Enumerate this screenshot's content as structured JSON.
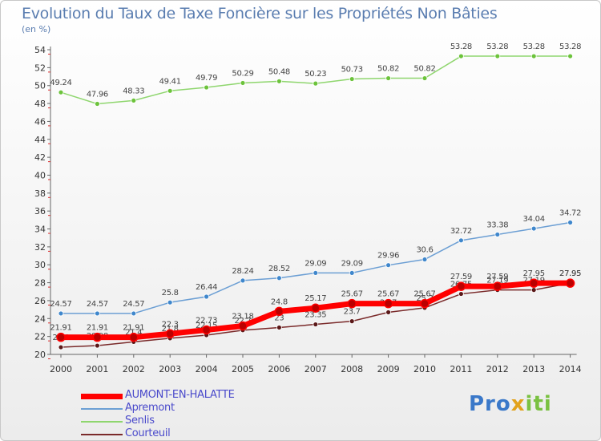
{
  "title": "Evolution du Taux de Taxe Foncière sur les Propriétés Non Bâties",
  "subtitle": "(en %)",
  "logo": {
    "text": "Proxiti"
  },
  "chart_data": {
    "type": "line",
    "title": "Evolution du Taux de Taxe Foncière sur les Propriétés Non Bâties",
    "ylabel": "(en %)",
    "xlabel": "",
    "ylim": [
      20,
      54
    ],
    "yticks": [
      20,
      22,
      24,
      26,
      28,
      30,
      32,
      34,
      36,
      38,
      40,
      42,
      44,
      46,
      48,
      50,
      52,
      54
    ],
    "grid": false,
    "legend_position": "bottom-left",
    "categories": [
      "2000",
      "2001",
      "2002",
      "2003",
      "2004",
      "2005",
      "2006",
      "2007",
      "2008",
      "2009",
      "2010",
      "2011",
      "2012",
      "2013",
      "2014"
    ],
    "series": [
      {
        "name": "AUMONT-EN-HALATTE",
        "color": "#ff0000",
        "width": 7,
        "dot": "#bb0000",
        "values": [
          21.91,
          21.91,
          21.91,
          22.3,
          22.73,
          23.18,
          24.8,
          25.17,
          25.67,
          25.67,
          25.67,
          27.59,
          27.59,
          27.95,
          27.95
        ],
        "labels": [
          "21.91",
          "21.91",
          "21.91",
          "22.3",
          "22.73",
          "23.18",
          "24.8",
          "25.17",
          "25.67",
          "25.67",
          "25.67",
          "27.59",
          "27.59",
          "27.95",
          "27.95"
        ]
      },
      {
        "name": "Apremont",
        "color": "#6c9fd4",
        "width": 1.5,
        "dot": "#3f87cc",
        "values": [
          24.57,
          24.57,
          24.57,
          25.8,
          26.44,
          28.24,
          28.52,
          29.09,
          29.09,
          29.96,
          30.6,
          32.72,
          33.38,
          34.04,
          34.72
        ],
        "labels": [
          "24.57",
          "24.57",
          "24.57",
          "25.8",
          "26.44",
          "28.24",
          "28.52",
          "29.09",
          "29.09",
          "29.96",
          "30.6",
          "32.72",
          "33.38",
          "34.04",
          "34.72"
        ]
      },
      {
        "name": "Senlis",
        "color": "#8fd66e",
        "width": 1.5,
        "dot": "#6cc33b",
        "values": [
          49.24,
          47.96,
          48.33,
          49.41,
          49.79,
          50.29,
          50.48,
          50.23,
          50.73,
          50.82,
          50.82,
          53.28,
          53.28,
          53.28,
          53.28
        ],
        "labels": [
          "49.24",
          "47.96",
          "48.33",
          "49.41",
          "49.79",
          "50.29",
          "50.48",
          "50.23",
          "50.73",
          "50.82",
          "50.82",
          "53.28",
          "53.28",
          "53.28",
          "53.28"
        ]
      },
      {
        "name": "Courteuil",
        "color": "#7a2a2a",
        "width": 1.5,
        "dot": "#5a1818",
        "values": [
          20.8,
          20.98,
          21.4,
          21.8,
          22.15,
          22.7,
          23.0,
          23.35,
          23.7,
          24.7,
          25.2,
          26.75,
          27.19,
          27.19,
          27.95
        ],
        "labels": [
          "20.8",
          "20.98",
          "21.4",
          "21.8",
          "22.15",
          "22.7",
          "23",
          "23.35",
          "23.7",
          "24.7",
          "25.2",
          "26.75",
          "27.19",
          "27.19",
          "27.95"
        ]
      }
    ]
  }
}
